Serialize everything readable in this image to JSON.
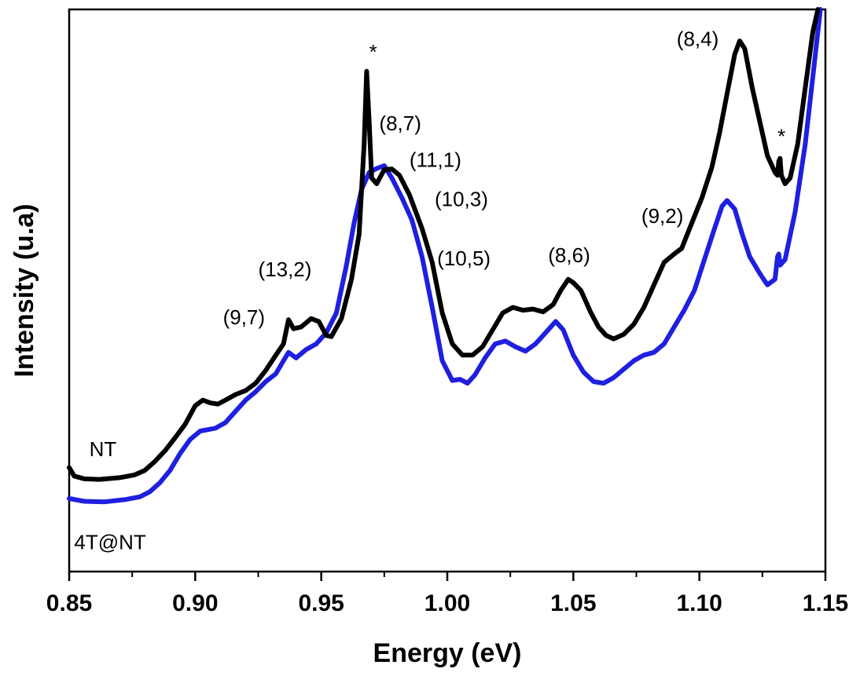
{
  "chart_data": {
    "type": "line",
    "title": "",
    "xlabel": "Energy (eV)",
    "ylabel": "Intensity (u.a)",
    "xlim": [
      0.85,
      1.15
    ],
    "ylim": [
      0,
      1
    ],
    "y_ticks_shown": false,
    "grid": false,
    "x_ticks": [
      "0.85",
      "0.90",
      "0.95",
      "1.00",
      "1.05",
      "1.10",
      "1.15"
    ],
    "series": [
      {
        "name": "NT",
        "color": "#000000",
        "points": [
          [
            0.85,
            0.185
          ],
          [
            0.852,
            0.17
          ],
          [
            0.856,
            0.165
          ],
          [
            0.862,
            0.164
          ],
          [
            0.87,
            0.167
          ],
          [
            0.876,
            0.172
          ],
          [
            0.88,
            0.18
          ],
          [
            0.884,
            0.196
          ],
          [
            0.888,
            0.215
          ],
          [
            0.892,
            0.238
          ],
          [
            0.896,
            0.262
          ],
          [
            0.9,
            0.295
          ],
          [
            0.903,
            0.305
          ],
          [
            0.906,
            0.3
          ],
          [
            0.909,
            0.298
          ],
          [
            0.912,
            0.305
          ],
          [
            0.916,
            0.315
          ],
          [
            0.92,
            0.322
          ],
          [
            0.924,
            0.335
          ],
          [
            0.928,
            0.358
          ],
          [
            0.932,
            0.385
          ],
          [
            0.935,
            0.405
          ],
          [
            0.937,
            0.448
          ],
          [
            0.939,
            0.432
          ],
          [
            0.942,
            0.435
          ],
          [
            0.946,
            0.45
          ],
          [
            0.949,
            0.445
          ],
          [
            0.952,
            0.42
          ],
          [
            0.954,
            0.418
          ],
          [
            0.958,
            0.45
          ],
          [
            0.962,
            0.52
          ],
          [
            0.965,
            0.6
          ],
          [
            0.967,
            0.76
          ],
          [
            0.968,
            0.89
          ],
          [
            0.969,
            0.8
          ],
          [
            0.97,
            0.7
          ],
          [
            0.972,
            0.69
          ],
          [
            0.975,
            0.715
          ],
          [
            0.978,
            0.716
          ],
          [
            0.981,
            0.705
          ],
          [
            0.985,
            0.67
          ],
          [
            0.99,
            0.61
          ],
          [
            0.994,
            0.55
          ],
          [
            0.998,
            0.46
          ],
          [
            1.002,
            0.405
          ],
          [
            1.006,
            0.385
          ],
          [
            1.01,
            0.385
          ],
          [
            1.014,
            0.4
          ],
          [
            1.018,
            0.43
          ],
          [
            1.022,
            0.46
          ],
          [
            1.026,
            0.47
          ],
          [
            1.03,
            0.465
          ],
          [
            1.034,
            0.467
          ],
          [
            1.038,
            0.462
          ],
          [
            1.042,
            0.475
          ],
          [
            1.045,
            0.5
          ],
          [
            1.048,
            0.52
          ],
          [
            1.05,
            0.514
          ],
          [
            1.053,
            0.5
          ],
          [
            1.057,
            0.46
          ],
          [
            1.06,
            0.435
          ],
          [
            1.063,
            0.42
          ],
          [
            1.066,
            0.414
          ],
          [
            1.07,
            0.422
          ],
          [
            1.074,
            0.44
          ],
          [
            1.078,
            0.47
          ],
          [
            1.082,
            0.51
          ],
          [
            1.086,
            0.55
          ],
          [
            1.09,
            0.565
          ],
          [
            1.093,
            0.575
          ],
          [
            1.097,
            0.62
          ],
          [
            1.101,
            0.665
          ],
          [
            1.105,
            0.72
          ],
          [
            1.108,
            0.78
          ],
          [
            1.111,
            0.85
          ],
          [
            1.114,
            0.92
          ],
          [
            1.116,
            0.944
          ],
          [
            1.118,
            0.93
          ],
          [
            1.121,
            0.86
          ],
          [
            1.124,
            0.8
          ],
          [
            1.127,
            0.74
          ],
          [
            1.13,
            0.71
          ],
          [
            1.131,
            0.705
          ],
          [
            1.1315,
            0.73
          ],
          [
            1.132,
            0.735
          ],
          [
            1.1325,
            0.705
          ],
          [
            1.134,
            0.69
          ],
          [
            1.136,
            0.7
          ],
          [
            1.139,
            0.76
          ],
          [
            1.142,
            0.86
          ],
          [
            1.145,
            0.96
          ],
          [
            1.147,
            1.0
          ]
        ]
      },
      {
        "name": "4T@NT",
        "color": "#1f1fe0",
        "points": [
          [
            0.85,
            0.13
          ],
          [
            0.856,
            0.125
          ],
          [
            0.864,
            0.124
          ],
          [
            0.872,
            0.128
          ],
          [
            0.878,
            0.133
          ],
          [
            0.882,
            0.142
          ],
          [
            0.886,
            0.158
          ],
          [
            0.89,
            0.18
          ],
          [
            0.894,
            0.21
          ],
          [
            0.898,
            0.235
          ],
          [
            0.902,
            0.25
          ],
          [
            0.908,
            0.255
          ],
          [
            0.912,
            0.265
          ],
          [
            0.916,
            0.285
          ],
          [
            0.92,
            0.305
          ],
          [
            0.924,
            0.32
          ],
          [
            0.928,
            0.338
          ],
          [
            0.932,
            0.352
          ],
          [
            0.935,
            0.375
          ],
          [
            0.937,
            0.39
          ],
          [
            0.94,
            0.38
          ],
          [
            0.944,
            0.395
          ],
          [
            0.948,
            0.405
          ],
          [
            0.952,
            0.425
          ],
          [
            0.956,
            0.46
          ],
          [
            0.96,
            0.545
          ],
          [
            0.963,
            0.62
          ],
          [
            0.966,
            0.68
          ],
          [
            0.969,
            0.71
          ],
          [
            0.972,
            0.717
          ],
          [
            0.975,
            0.722
          ],
          [
            0.978,
            0.7
          ],
          [
            0.982,
            0.665
          ],
          [
            0.986,
            0.625
          ],
          [
            0.99,
            0.56
          ],
          [
            0.994,
            0.47
          ],
          [
            0.998,
            0.375
          ],
          [
            1.002,
            0.34
          ],
          [
            1.005,
            0.342
          ],
          [
            1.008,
            0.335
          ],
          [
            1.011,
            0.35
          ],
          [
            1.015,
            0.38
          ],
          [
            1.019,
            0.405
          ],
          [
            1.023,
            0.41
          ],
          [
            1.027,
            0.4
          ],
          [
            1.031,
            0.392
          ],
          [
            1.035,
            0.405
          ],
          [
            1.039,
            0.425
          ],
          [
            1.043,
            0.445
          ],
          [
            1.046,
            0.43
          ],
          [
            1.05,
            0.385
          ],
          [
            1.054,
            0.355
          ],
          [
            1.058,
            0.338
          ],
          [
            1.062,
            0.335
          ],
          [
            1.066,
            0.345
          ],
          [
            1.07,
            0.36
          ],
          [
            1.074,
            0.375
          ],
          [
            1.078,
            0.385
          ],
          [
            1.082,
            0.39
          ],
          [
            1.086,
            0.405
          ],
          [
            1.09,
            0.435
          ],
          [
            1.094,
            0.465
          ],
          [
            1.098,
            0.5
          ],
          [
            1.102,
            0.555
          ],
          [
            1.106,
            0.61
          ],
          [
            1.109,
            0.65
          ],
          [
            1.111,
            0.66
          ],
          [
            1.114,
            0.645
          ],
          [
            1.117,
            0.6
          ],
          [
            1.12,
            0.56
          ],
          [
            1.124,
            0.53
          ],
          [
            1.127,
            0.51
          ],
          [
            1.13,
            0.52
          ],
          [
            1.131,
            0.56
          ],
          [
            1.1315,
            0.565
          ],
          [
            1.132,
            0.545
          ],
          [
            1.134,
            0.555
          ],
          [
            1.138,
            0.64
          ],
          [
            1.142,
            0.76
          ],
          [
            1.145,
            0.88
          ],
          [
            1.148,
            1.0
          ]
        ]
      }
    ],
    "series_labels": [
      {
        "text": "NT",
        "x": 0.858,
        "y": 0.205
      },
      {
        "text": "4T@NT",
        "x": 0.852,
        "y": 0.04
      }
    ],
    "annotations": [
      {
        "text": "*",
        "x": 0.969,
        "y": 0.912
      },
      {
        "text": "(8,7)",
        "x": 0.973,
        "y": 0.785
      },
      {
        "text": "(11,1)",
        "x": 0.985,
        "y": 0.72
      },
      {
        "text": "(10,3)",
        "x": 0.995,
        "y": 0.65
      },
      {
        "text": "(10,5)",
        "x": 0.996,
        "y": 0.545
      },
      {
        "text": "(8,6)",
        "x": 1.04,
        "y": 0.55
      },
      {
        "text": "(9,2)",
        "x": 1.077,
        "y": 0.62
      },
      {
        "text": "(8,4)",
        "x": 1.091,
        "y": 0.935
      },
      {
        "text": "*",
        "x": 1.131,
        "y": 0.762
      },
      {
        "text": "(13,2)",
        "x": 0.925,
        "y": 0.525
      },
      {
        "text": "(9,7)",
        "x": 0.911,
        "y": 0.44
      }
    ]
  }
}
